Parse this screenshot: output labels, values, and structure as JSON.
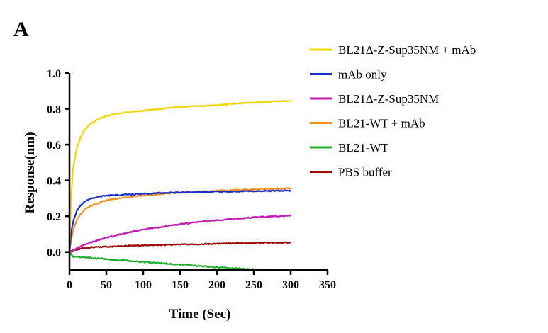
{
  "panel_label": "A",
  "chart_data": {
    "type": "line",
    "title": "",
    "xlabel": "Time (Sec)",
    "ylabel": "Response(nm)",
    "xlim": [
      0,
      350
    ],
    "ylim": [
      -0.1,
      1.0
    ],
    "xticks": [
      0,
      50,
      100,
      150,
      200,
      250,
      300,
      350
    ],
    "yticks": [
      0.0,
      0.2,
      0.4,
      0.6,
      0.8,
      1.0
    ],
    "ytick_labels": [
      "0.0",
      "0.2",
      "0.4",
      "0.6",
      "0.8",
      "1.0"
    ],
    "legend_position": "top-right",
    "series": [
      {
        "name": "BL21Δ-Z-Sup35NM + mAb",
        "color": "#f2d600",
        "x": [
          0,
          2,
          5,
          10,
          15,
          20,
          30,
          40,
          50,
          75,
          100,
          125,
          150,
          175,
          200,
          225,
          250,
          275,
          300
        ],
        "y": [
          0,
          0.3,
          0.47,
          0.58,
          0.64,
          0.68,
          0.72,
          0.745,
          0.76,
          0.78,
          0.79,
          0.8,
          0.81,
          0.815,
          0.82,
          0.83,
          0.835,
          0.84,
          0.845
        ]
      },
      {
        "name": "mAb only",
        "color": "#1730c8",
        "x": [
          0,
          2,
          5,
          10,
          15,
          20,
          30,
          40,
          50,
          75,
          100,
          125,
          150,
          175,
          200,
          250,
          300
        ],
        "y": [
          0,
          0.1,
          0.17,
          0.23,
          0.26,
          0.28,
          0.3,
          0.31,
          0.315,
          0.32,
          0.325,
          0.33,
          0.333,
          0.335,
          0.337,
          0.34,
          0.343
        ]
      },
      {
        "name": "BL21Δ-Z-Sup35NM",
        "color": "#c21ab0",
        "x": [
          0,
          10,
          20,
          30,
          50,
          75,
          100,
          125,
          150,
          175,
          200,
          250,
          300
        ],
        "y": [
          0,
          0.02,
          0.04,
          0.055,
          0.08,
          0.105,
          0.125,
          0.14,
          0.155,
          0.168,
          0.178,
          0.193,
          0.205
        ]
      },
      {
        "name": "BL21-WT + mAb",
        "color": "#f7901e",
        "x": [
          0,
          2,
          5,
          10,
          15,
          20,
          30,
          40,
          50,
          75,
          100,
          125,
          150,
          175,
          200,
          250,
          300
        ],
        "y": [
          0,
          0.06,
          0.12,
          0.18,
          0.21,
          0.235,
          0.26,
          0.275,
          0.29,
          0.305,
          0.315,
          0.325,
          0.333,
          0.338,
          0.342,
          0.35,
          0.357
        ]
      },
      {
        "name": "BL21-WT",
        "color": "#1fae2a",
        "x": [
          0,
          5,
          20,
          50,
          100,
          150,
          200,
          250,
          265
        ],
        "y": [
          0,
          -0.025,
          -0.03,
          -0.04,
          -0.055,
          -0.07,
          -0.085,
          -0.097,
          -0.1
        ]
      },
      {
        "name": "PBS buffer",
        "color": "#9b0a0a",
        "x": [
          0,
          5,
          10,
          20,
          30,
          50,
          75,
          100,
          150,
          200,
          250,
          300
        ],
        "y": [
          0,
          0.01,
          0.015,
          0.022,
          0.026,
          0.03,
          0.034,
          0.037,
          0.042,
          0.046,
          0.05,
          0.053
        ]
      }
    ]
  }
}
